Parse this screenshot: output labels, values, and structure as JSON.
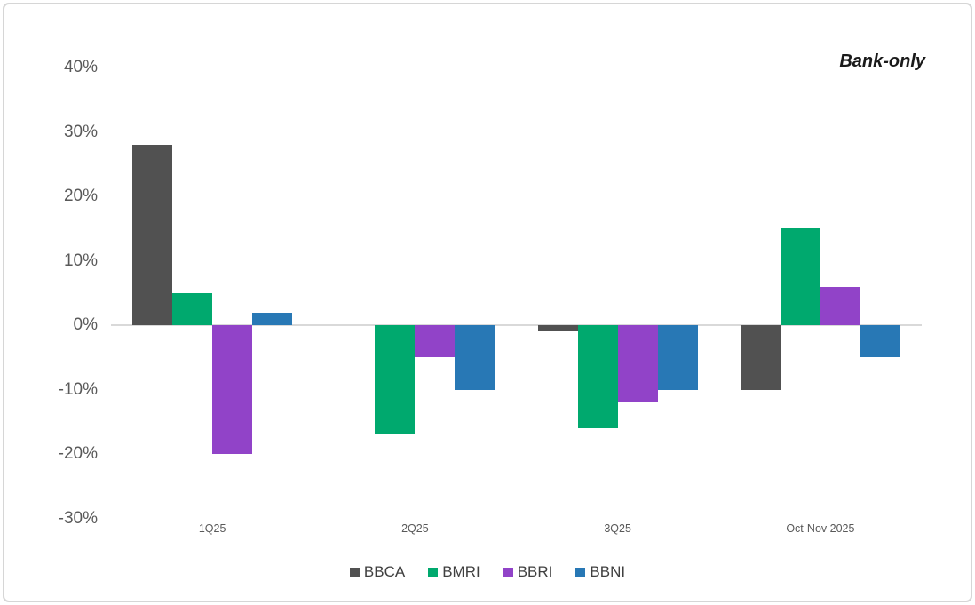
{
  "annotation": {
    "text": "Bank-only"
  },
  "chart_data": {
    "type": "bar",
    "title": "",
    "subtitle": "Bank-only",
    "categories": [
      "1Q25",
      "2Q25",
      "3Q25",
      "Oct-Nov 2025"
    ],
    "series": [
      {
        "name": "BBCA",
        "color": "#515151",
        "values": [
          28,
          0,
          -1,
          -10
        ]
      },
      {
        "name": "BMRI",
        "color": "#00A96E",
        "values": [
          5,
          -17,
          -16,
          15
        ]
      },
      {
        "name": "BBRI",
        "color": "#9143C8",
        "values": [
          -20,
          -5,
          -12,
          6
        ]
      },
      {
        "name": "BBNI",
        "color": "#2878B5",
        "values": [
          2,
          -10,
          -10,
          -5
        ]
      }
    ],
    "y_axis": {
      "min": -30,
      "max": 40,
      "tick_step": 10,
      "tick_labels": [
        "40%",
        "30%",
        "20%",
        "10%",
        "0%",
        "-10%",
        "-20%",
        "-30%"
      ]
    },
    "xlabel": "",
    "ylabel": "",
    "grid": false,
    "legend_position": "bottom",
    "baseline_color": "#D9D9D9",
    "axis_label_color": "#595959"
  }
}
